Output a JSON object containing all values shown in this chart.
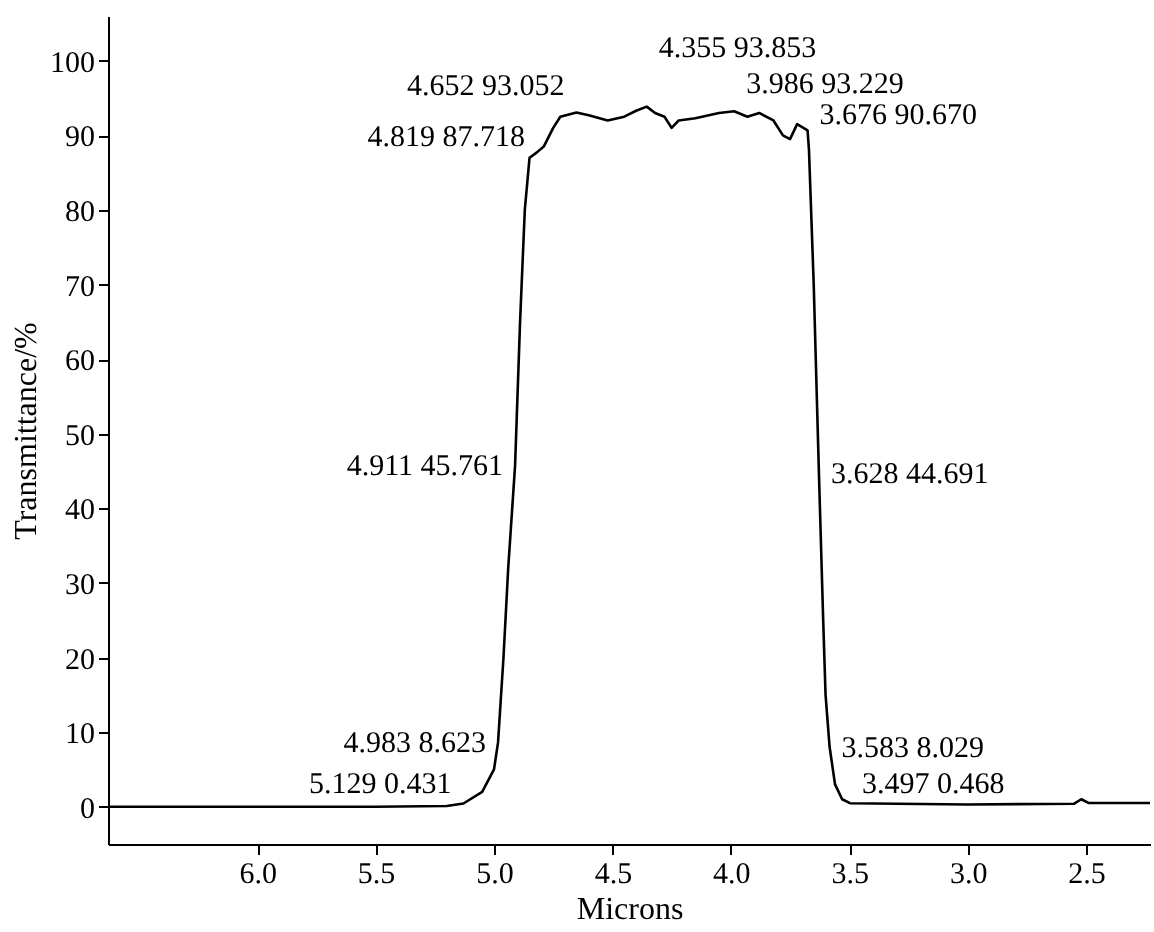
{
  "chart_data": {
    "type": "line",
    "xlabel": "Microns",
    "ylabel": "Transmittance/%",
    "xlim": [
      6.63,
      2.23
    ],
    "ylim": [
      -5,
      106
    ],
    "xticks": [
      {
        "value": 6,
        "label": "6.0"
      },
      {
        "value": 5.5,
        "label": "5.5"
      },
      {
        "value": 5,
        "label": "5.0"
      },
      {
        "value": 4.5,
        "label": "4.5"
      },
      {
        "value": 4,
        "label": "4.0"
      },
      {
        "value": 3.5,
        "label": "3.5"
      },
      {
        "value": 3,
        "label": "3.0"
      },
      {
        "value": 2.5,
        "label": "2.5"
      }
    ],
    "yticks": [
      0,
      10,
      20,
      30,
      40,
      50,
      60,
      70,
      80,
      90,
      100
    ],
    "grid": false,
    "marker": "none",
    "line_style": "solid",
    "series": [
      {
        "color": "#000000",
        "x": [
          6.63,
          5.5,
          5.2,
          5.129,
          5.05,
          5.0,
          4.983,
          4.96,
          4.94,
          4.911,
          4.89,
          4.87,
          4.85,
          4.819,
          4.79,
          4.75,
          4.72,
          4.652,
          4.6,
          4.52,
          4.45,
          4.4,
          4.355,
          4.32,
          4.28,
          4.25,
          4.22,
          4.15,
          4.05,
          3.986,
          3.93,
          3.88,
          3.82,
          3.78,
          3.75,
          3.72,
          3.676,
          3.67,
          3.65,
          3.628,
          3.61,
          3.6,
          3.583,
          3.56,
          3.53,
          3.497,
          3.0,
          2.55,
          2.52,
          2.49,
          2.4,
          2.23
        ],
        "values": [
          0,
          0,
          0.1,
          0.431,
          2,
          5,
          8.623,
          20,
          32,
          45.761,
          65,
          80,
          87,
          87.718,
          88.5,
          91,
          92.5,
          93.052,
          92.7,
          92,
          92.5,
          93.3,
          93.853,
          93,
          92.5,
          91,
          92,
          92.3,
          93,
          93.229,
          92.5,
          93,
          92,
          90,
          89.5,
          91.5,
          90.67,
          88,
          70,
          44.691,
          25,
          15,
          8.029,
          3,
          1,
          0.468,
          0.3,
          0.4,
          1,
          0.5,
          0.5,
          0.5
        ]
      }
    ],
    "annotations": [
      {
        "text": "5.129  0.431",
        "x": 5.129,
        "y": 0.431
      },
      {
        "text": "4.983  8.623",
        "x": 4.983,
        "y": 8.623
      },
      {
        "text": "4.911  45.761",
        "x": 4.911,
        "y": 45.761
      },
      {
        "text": "4.819  87.718",
        "x": 4.819,
        "y": 87.718
      },
      {
        "text": "4.652  93.052",
        "x": 4.652,
        "y": 93.052
      },
      {
        "text": "4.355  93.853",
        "x": 4.355,
        "y": 93.853
      },
      {
        "text": "3.986  93.229",
        "x": 3.986,
        "y": 93.229
      },
      {
        "text": "3.676  90.670",
        "x": 3.676,
        "y": 90.67
      },
      {
        "text": "3.628  44.691",
        "x": 3.628,
        "y": 44.691
      },
      {
        "text": "3.583  8.029",
        "x": 3.583,
        "y": 8.029
      },
      {
        "text": "3.497  0.468",
        "x": 3.497,
        "y": 0.468
      }
    ]
  }
}
